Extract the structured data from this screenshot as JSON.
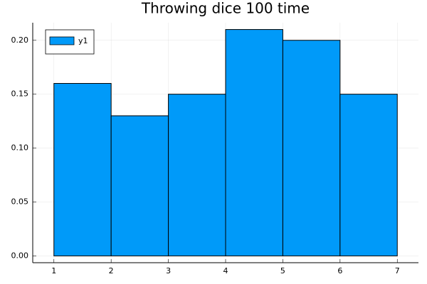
{
  "chart_data": {
    "type": "histogram",
    "title": "Throwing dice 100 time",
    "bins": [
      1,
      2,
      3,
      4,
      5,
      6,
      7
    ],
    "series": [
      {
        "name": "y1",
        "color": "#009af9",
        "values": [
          0.16,
          0.13,
          0.15,
          0.21,
          0.2,
          0.15
        ]
      }
    ],
    "xlim": [
      0.63,
      7.37
    ],
    "xticks": [
      1,
      2,
      3,
      4,
      5,
      6,
      7
    ],
    "ylim": [
      -0.0063,
      0.2163
    ],
    "yticks": [
      {
        "value": 0,
        "label": "0.00"
      },
      {
        "value": 0.05,
        "label": "0.05"
      },
      {
        "value": 0.1,
        "label": "0.10"
      },
      {
        "value": 0.15,
        "label": "0.15"
      },
      {
        "value": 0.2,
        "label": "0.20"
      }
    ],
    "grid": true,
    "legend": "top-left"
  }
}
